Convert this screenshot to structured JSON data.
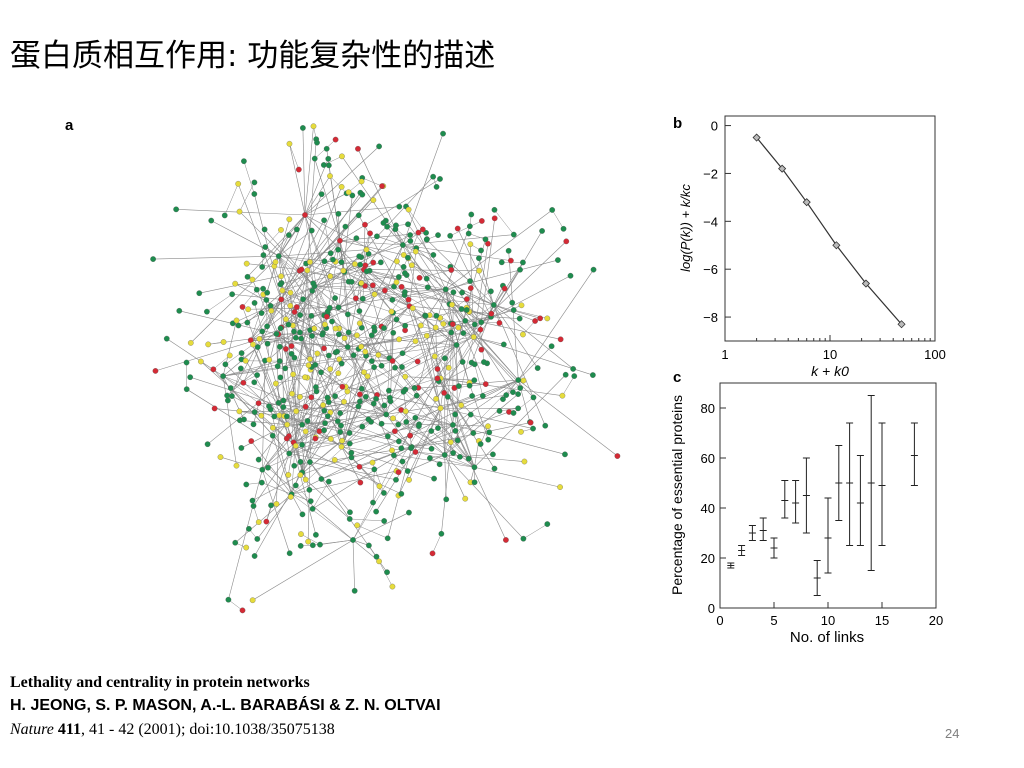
{
  "slide": {
    "title": "蛋白质相互作用: 功能复杂性的描述",
    "page_number": "24"
  },
  "caption": {
    "title": "Lethality and centrality in protein networks",
    "authors": "H. JEONG, S. P. MASON, A.-L. BARABÁSI & Z. N. OLTVAI",
    "journal": "Nature",
    "volume": "411",
    "rest": ", 41 - 42 (2001); doi:10.1038/35075138"
  },
  "figure": {
    "panel_a_label": "a",
    "node_colors": {
      "green": "#1e8c4e",
      "red": "#d42a35",
      "yellow": "#e6dc3c",
      "orange": "#e88a2a",
      "edge": "#8a8a8a"
    }
  },
  "chart_data": [
    {
      "type": "line",
      "panel_label": "b",
      "xscale": "log",
      "x": [
        2,
        3.5,
        6,
        11.5,
        22,
        48
      ],
      "y": [
        -0.5,
        -1.8,
        -3.2,
        -5.0,
        -6.6,
        -8.3
      ],
      "xlabel": "k + k0",
      "ylabel": "log(P(k)) + k/kc",
      "xticks": [
        "1",
        "10",
        "100"
      ],
      "yticks": [
        "0",
        "−2",
        "−4",
        "−6",
        "−8"
      ],
      "xlim": [
        1,
        100
      ],
      "ylim": [
        -9,
        0.4
      ]
    },
    {
      "type": "scatter",
      "panel_label": "c",
      "x": [
        1,
        2,
        3,
        4,
        5,
        6,
        7,
        8,
        9,
        10,
        11,
        12,
        13,
        14,
        15,
        18
      ],
      "y": [
        17,
        23,
        30,
        31,
        24,
        43,
        42,
        45,
        12,
        28,
        50,
        50,
        42,
        50,
        49,
        61
      ],
      "yerr_low": [
        16,
        21,
        27,
        27,
        20,
        36,
        34,
        30,
        5,
        14,
        35,
        25,
        25,
        15,
        25,
        49
      ],
      "yerr_high": [
        18,
        25,
        33,
        36,
        28,
        51,
        51,
        60,
        19,
        44,
        65,
        74,
        61,
        85,
        74,
        74
      ],
      "xlabel": "No. of links",
      "ylabel": "Percentage of essential proteins",
      "xticks": [
        "0",
        "5",
        "10",
        "15",
        "20"
      ],
      "yticks": [
        "0",
        "20",
        "40",
        "60",
        "80"
      ],
      "xlim": [
        0,
        20
      ],
      "ylim": [
        0,
        90
      ]
    }
  ]
}
